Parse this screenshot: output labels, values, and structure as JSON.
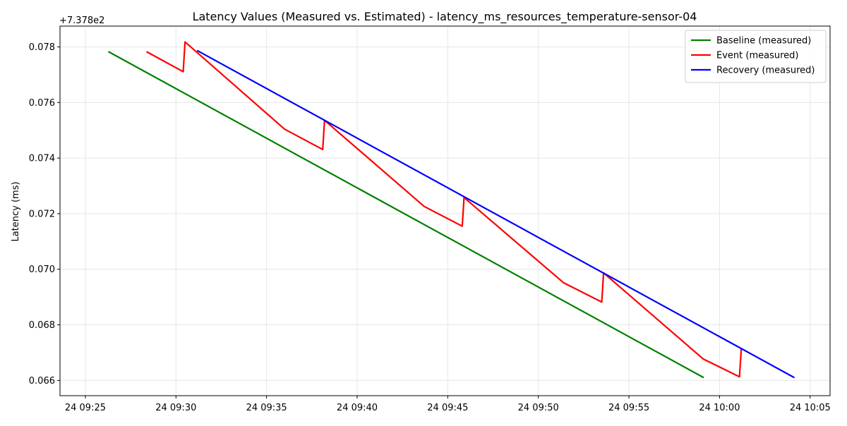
{
  "chart_data": {
    "type": "line",
    "title": "Latency Values (Measured vs. Estimated) - latency_ms_resources_temperature-sensor-04",
    "xlabel": "",
    "ylabel": "Latency (ms)",
    "y_offset_label": "+7.378e2",
    "grid": true,
    "legend_position": "top-right",
    "x_tick_labels": [
      "24 09:25",
      "24 09:30",
      "24 09:35",
      "24 09:40",
      "24 09:45",
      "24 09:50",
      "24 09:55",
      "24 10:00",
      "24 10:05"
    ],
    "y_tick_labels": [
      "0.066",
      "0.068",
      "0.070",
      "0.072",
      "0.074",
      "0.076",
      "0.078"
    ],
    "y_ticks": [
      0.066,
      0.068,
      0.07,
      0.072,
      0.074,
      0.076,
      0.078
    ],
    "xlim_minutes": [
      23.6,
      66.1
    ],
    "ylim": [
      0.06545,
      0.07875
    ],
    "series": [
      {
        "name": "Baseline (measured)",
        "color": "#008000",
        "x": [
          "09:26:18",
          "09:59:06"
        ],
        "y": [
          0.07782,
          0.06611
        ]
      },
      {
        "name": "Event (measured)",
        "color": "#ff0000",
        "x": [
          "09:28:24",
          "09:30:24",
          "09:30:30",
          "09:36:00",
          "09:38:06",
          "09:38:12",
          "09:43:42",
          "09:45:48",
          "09:45:54",
          "09:51:24",
          "09:53:30",
          "09:53:36",
          "09:59:06",
          "10:01:06",
          "10:01:12"
        ],
        "y": [
          0.07782,
          0.07711,
          0.07818,
          0.07504,
          0.07431,
          0.07536,
          0.07226,
          0.07155,
          0.07258,
          0.06951,
          0.06882,
          0.06987,
          0.06677,
          0.06613,
          0.06713
        ]
      },
      {
        "name": "Recovery (measured)",
        "color": "#0000ff",
        "x": [
          "09:31:12",
          "10:04:06"
        ],
        "y": [
          0.07786,
          0.06611
        ]
      }
    ]
  }
}
